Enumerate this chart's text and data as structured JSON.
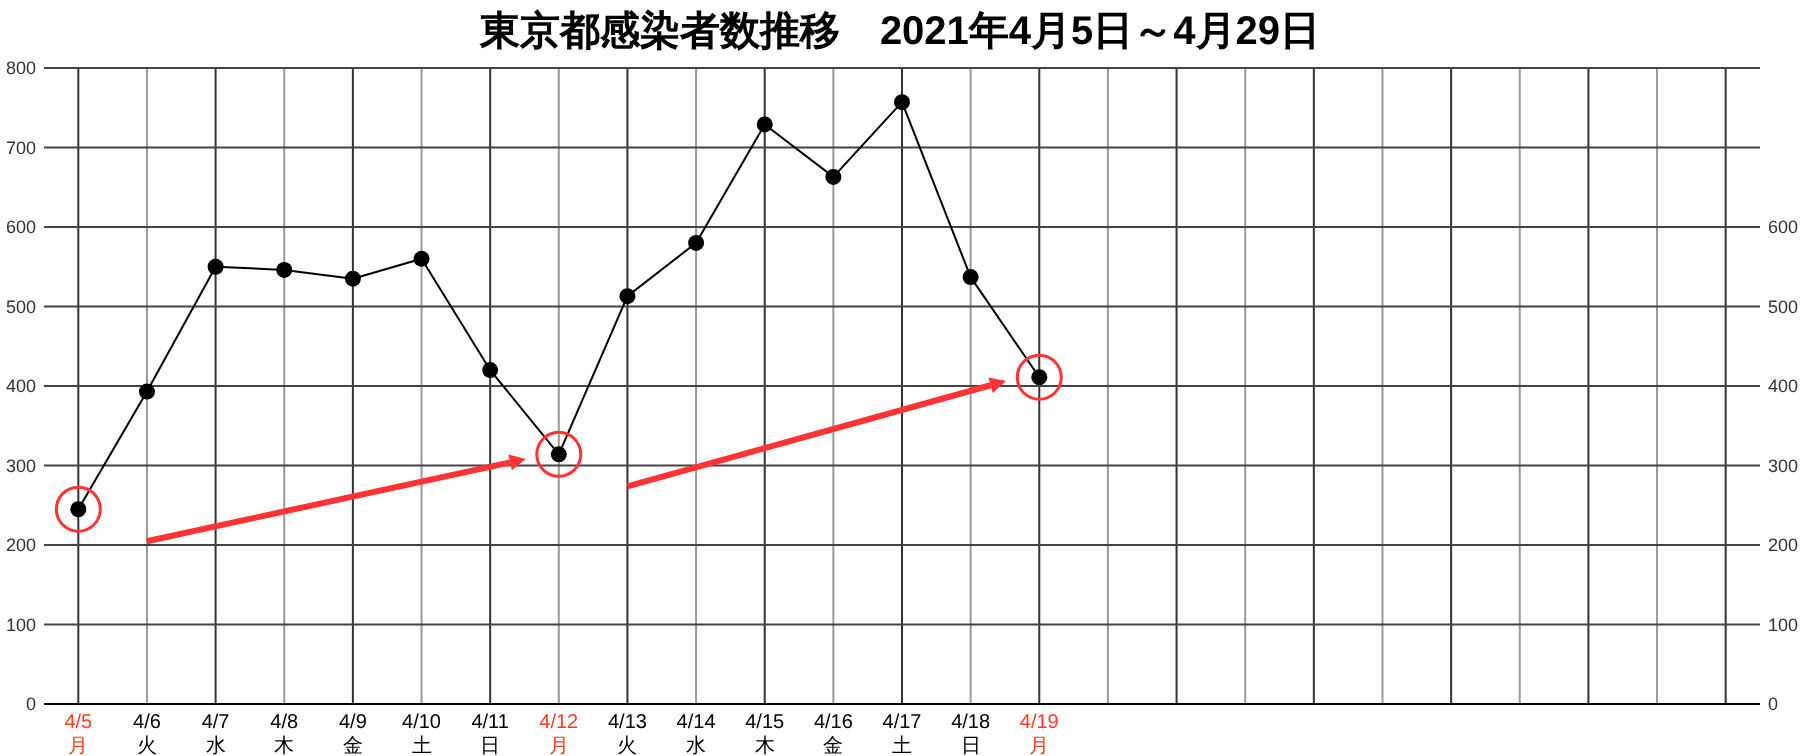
{
  "chart_data": {
    "type": "line",
    "title": "東京都感染者数推移　2021年4月5日～4月29日",
    "categories": [
      "4/5\n月",
      "4/6\n火",
      "4/7\n水",
      "4/8\n木",
      "4/9\n金",
      "4/10\n土",
      "4/11\n日",
      "4/12\n月",
      "4/13\n火",
      "4/14\n水",
      "4/15\n木",
      "4/16\n金",
      "4/17\n土",
      "4/18\n日",
      "4/19\n月",
      null,
      null,
      null,
      null,
      null,
      null,
      null,
      null,
      null,
      null
    ],
    "series": [
      {
        "color": "#000000",
        "values": [
          245,
          393,
          550,
          546,
          535,
          560,
          420,
          314,
          513,
          580,
          729,
          663,
          757,
          537,
          411,
          null,
          null,
          null,
          null,
          null,
          null,
          null,
          null,
          null,
          null
        ]
      }
    ],
    "ylim": [
      0,
      800
    ],
    "yticks": [
      0,
      100,
      200,
      300,
      400,
      500,
      600,
      700,
      800
    ],
    "y2lim": [
      0,
      800
    ],
    "y2ticks": [
      0,
      100,
      200,
      300,
      400,
      500,
      600
    ],
    "grid": true,
    "marker": "circle",
    "line_style": "solid"
  }
}
